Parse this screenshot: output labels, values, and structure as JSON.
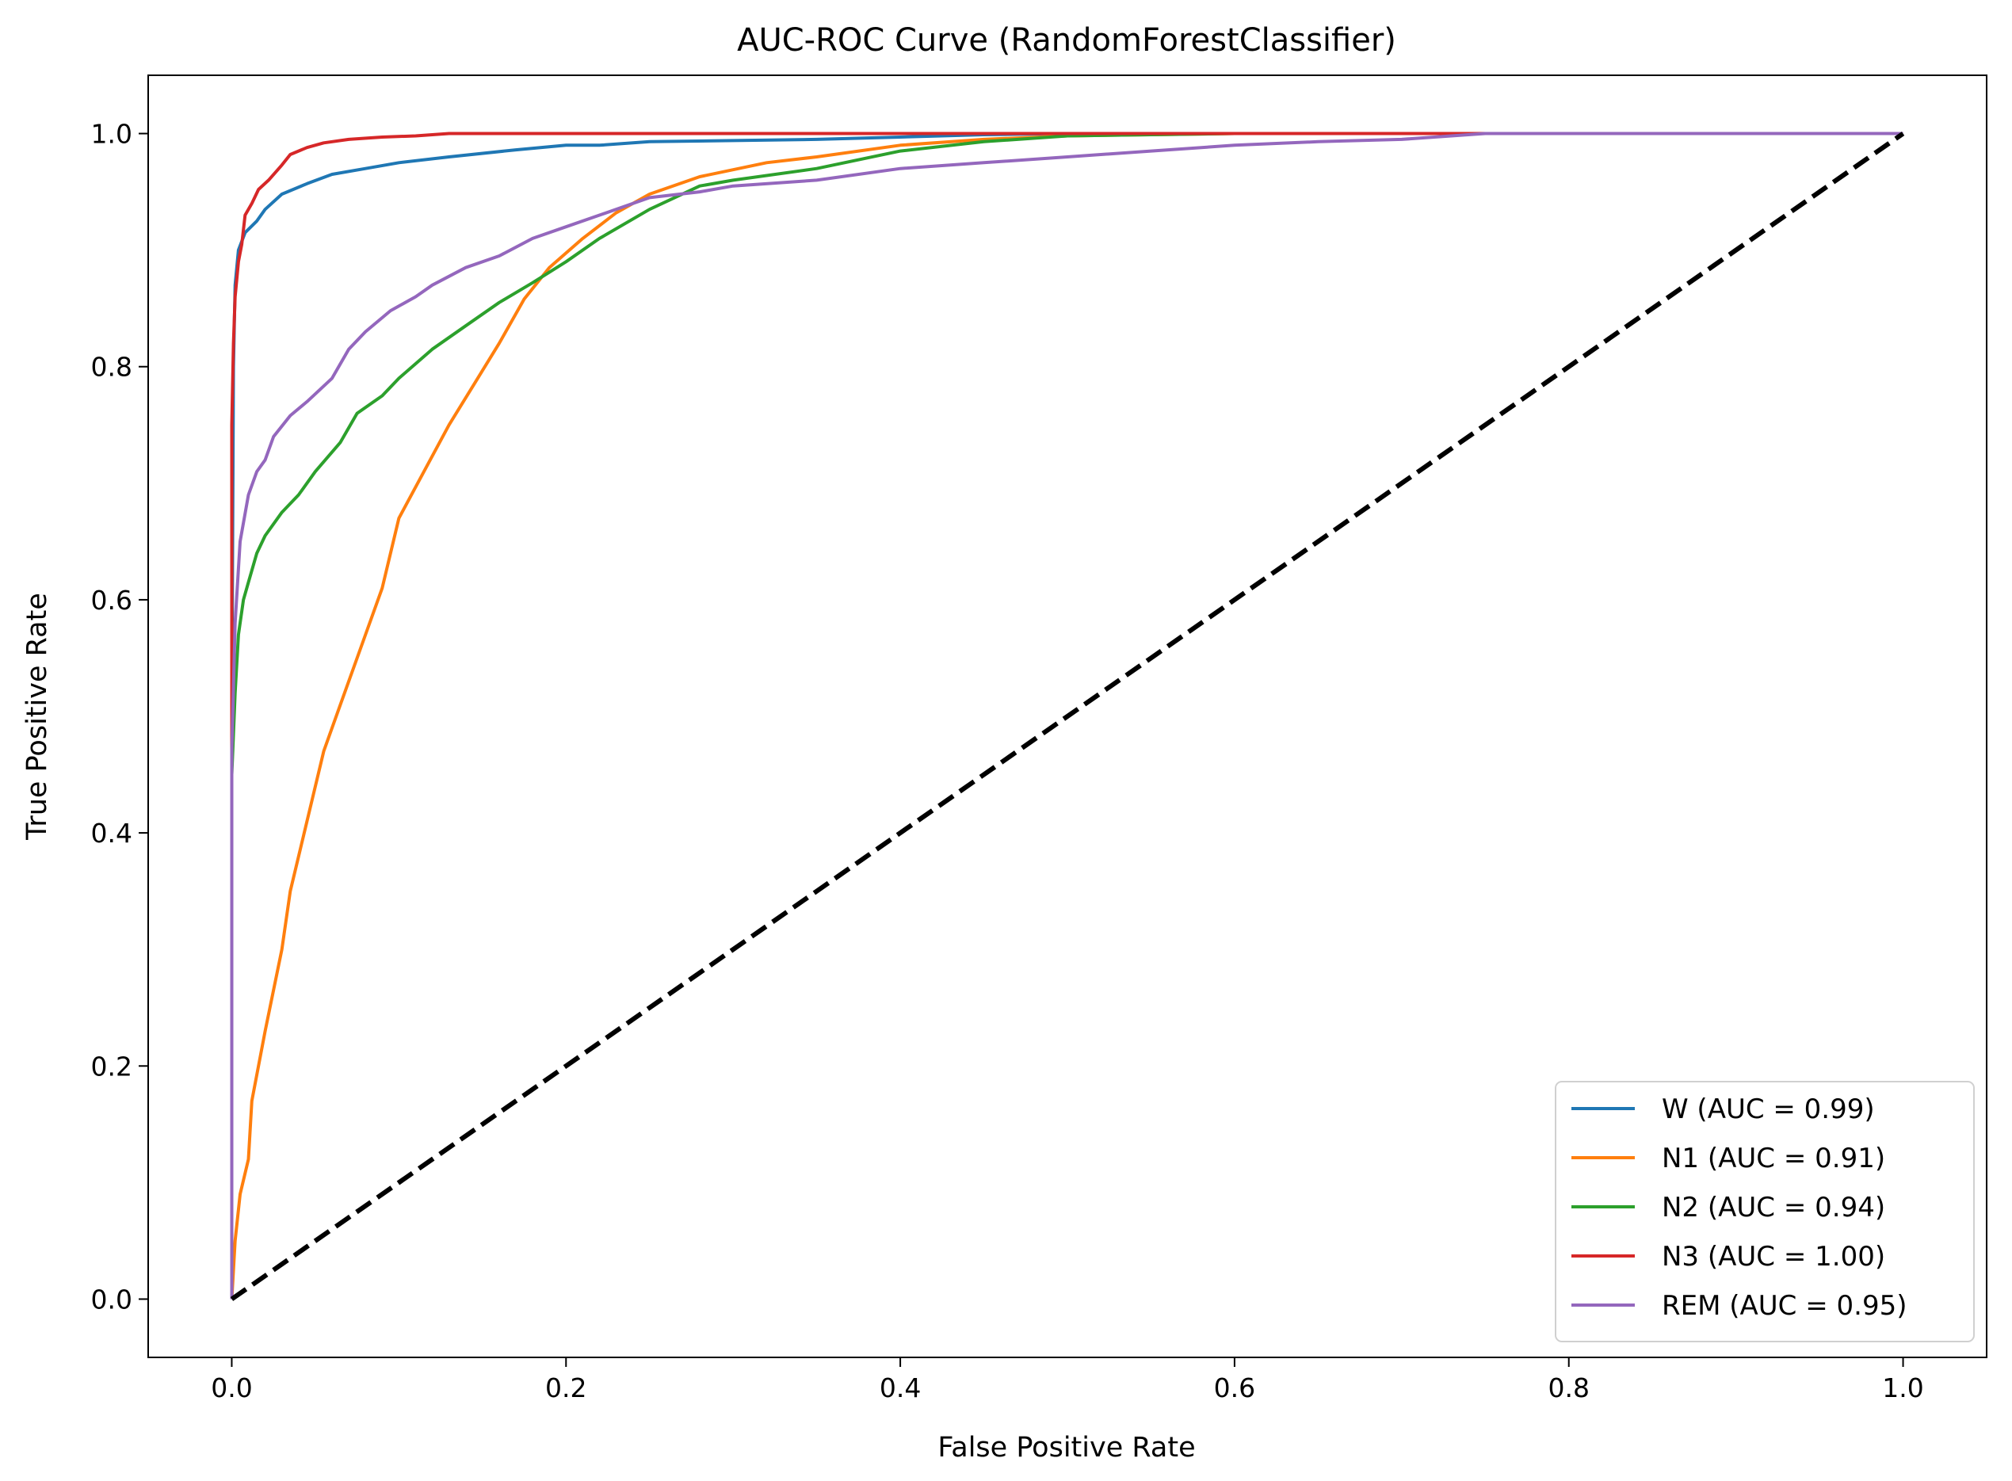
{
  "chart_data": {
    "type": "line",
    "title": "AUC-ROC Curve (RandomForestClassifier)",
    "xlabel": "False Positive Rate",
    "ylabel": "True Positive Rate",
    "xlim": [
      -0.05,
      1.05
    ],
    "ylim": [
      -0.05,
      1.05
    ],
    "xticks": [
      0.0,
      0.2,
      0.4,
      0.6,
      0.8,
      1.0
    ],
    "yticks": [
      0.0,
      0.2,
      0.4,
      0.6,
      0.8,
      1.0
    ],
    "xtick_labels": [
      "0.0",
      "0.2",
      "0.4",
      "0.6",
      "0.8",
      "1.0"
    ],
    "ytick_labels": [
      "0.0",
      "0.2",
      "0.4",
      "0.6",
      "0.8",
      "1.0"
    ],
    "grid": false,
    "legend_position": "lower-right",
    "series": [
      {
        "name": "W (AUC = 0.99)",
        "color": "#1f77b4",
        "points": [
          [
            0,
            0
          ],
          [
            0,
            0.5
          ],
          [
            0.001,
            0.8
          ],
          [
            0.002,
            0.87
          ],
          [
            0.004,
            0.9
          ],
          [
            0.008,
            0.915
          ],
          [
            0.015,
            0.925
          ],
          [
            0.02,
            0.935
          ],
          [
            0.03,
            0.948
          ],
          [
            0.045,
            0.957
          ],
          [
            0.06,
            0.965
          ],
          [
            0.08,
            0.97
          ],
          [
            0.1,
            0.975
          ],
          [
            0.13,
            0.98
          ],
          [
            0.17,
            0.986
          ],
          [
            0.2,
            0.99
          ],
          [
            0.22,
            0.99
          ],
          [
            0.25,
            0.993
          ],
          [
            0.3,
            0.994
          ],
          [
            0.35,
            0.995
          ],
          [
            0.4,
            0.997
          ],
          [
            0.45,
            0.999
          ],
          [
            0.5,
            1.0
          ],
          [
            1.0,
            1.0
          ]
        ]
      },
      {
        "name": "N1 (AUC = 0.91)",
        "color": "#ff7f0e",
        "points": [
          [
            0,
            0
          ],
          [
            0.002,
            0.05
          ],
          [
            0.005,
            0.09
          ],
          [
            0.01,
            0.12
          ],
          [
            0.012,
            0.17
          ],
          [
            0.02,
            0.23
          ],
          [
            0.03,
            0.3
          ],
          [
            0.035,
            0.35
          ],
          [
            0.045,
            0.41
          ],
          [
            0.055,
            0.47
          ],
          [
            0.065,
            0.51
          ],
          [
            0.08,
            0.57
          ],
          [
            0.09,
            0.61
          ],
          [
            0.1,
            0.67
          ],
          [
            0.115,
            0.71
          ],
          [
            0.13,
            0.75
          ],
          [
            0.145,
            0.785
          ],
          [
            0.16,
            0.82
          ],
          [
            0.175,
            0.858
          ],
          [
            0.19,
            0.885
          ],
          [
            0.21,
            0.91
          ],
          [
            0.23,
            0.932
          ],
          [
            0.25,
            0.948
          ],
          [
            0.28,
            0.963
          ],
          [
            0.32,
            0.975
          ],
          [
            0.35,
            0.98
          ],
          [
            0.4,
            0.99
          ],
          [
            0.45,
            0.995
          ],
          [
            0.5,
            0.998
          ],
          [
            0.6,
            1.0
          ],
          [
            1.0,
            1.0
          ]
        ]
      },
      {
        "name": "N2 (AUC = 0.94)",
        "color": "#2ca02c",
        "points": [
          [
            0,
            0
          ],
          [
            0,
            0.45
          ],
          [
            0.002,
            0.52
          ],
          [
            0.004,
            0.57
          ],
          [
            0.007,
            0.6
          ],
          [
            0.01,
            0.615
          ],
          [
            0.015,
            0.64
          ],
          [
            0.02,
            0.655
          ],
          [
            0.03,
            0.675
          ],
          [
            0.04,
            0.69
          ],
          [
            0.05,
            0.71
          ],
          [
            0.065,
            0.735
          ],
          [
            0.075,
            0.76
          ],
          [
            0.09,
            0.775
          ],
          [
            0.1,
            0.79
          ],
          [
            0.12,
            0.815
          ],
          [
            0.14,
            0.835
          ],
          [
            0.16,
            0.855
          ],
          [
            0.18,
            0.872
          ],
          [
            0.2,
            0.89
          ],
          [
            0.22,
            0.91
          ],
          [
            0.25,
            0.935
          ],
          [
            0.28,
            0.955
          ],
          [
            0.3,
            0.96
          ],
          [
            0.35,
            0.97
          ],
          [
            0.4,
            0.985
          ],
          [
            0.45,
            0.993
          ],
          [
            0.5,
            0.998
          ],
          [
            0.6,
            1.0
          ],
          [
            1.0,
            1.0
          ]
        ]
      },
      {
        "name": "N3 (AUC = 1.00)",
        "color": "#d62728",
        "points": [
          [
            0,
            0
          ],
          [
            0,
            0.75
          ],
          [
            0.001,
            0.82
          ],
          [
            0.002,
            0.86
          ],
          [
            0.004,
            0.89
          ],
          [
            0.006,
            0.905
          ],
          [
            0.008,
            0.93
          ],
          [
            0.012,
            0.94
          ],
          [
            0.016,
            0.952
          ],
          [
            0.022,
            0.96
          ],
          [
            0.03,
            0.973
          ],
          [
            0.035,
            0.982
          ],
          [
            0.045,
            0.988
          ],
          [
            0.055,
            0.992
          ],
          [
            0.07,
            0.995
          ],
          [
            0.09,
            0.997
          ],
          [
            0.11,
            0.998
          ],
          [
            0.13,
            1.0
          ],
          [
            1.0,
            1.0
          ]
        ]
      },
      {
        "name": "REM (AUC = 0.95)",
        "color": "#9467bd",
        "points": [
          [
            0,
            0
          ],
          [
            0,
            0.47
          ],
          [
            0.002,
            0.58
          ],
          [
            0.005,
            0.65
          ],
          [
            0.01,
            0.69
          ],
          [
            0.015,
            0.71
          ],
          [
            0.02,
            0.72
          ],
          [
            0.025,
            0.74
          ],
          [
            0.035,
            0.758
          ],
          [
            0.045,
            0.77
          ],
          [
            0.06,
            0.79
          ],
          [
            0.07,
            0.815
          ],
          [
            0.08,
            0.83
          ],
          [
            0.095,
            0.848
          ],
          [
            0.11,
            0.86
          ],
          [
            0.12,
            0.87
          ],
          [
            0.14,
            0.885
          ],
          [
            0.16,
            0.895
          ],
          [
            0.18,
            0.91
          ],
          [
            0.2,
            0.92
          ],
          [
            0.22,
            0.93
          ],
          [
            0.25,
            0.945
          ],
          [
            0.28,
            0.95
          ],
          [
            0.3,
            0.955
          ],
          [
            0.35,
            0.96
          ],
          [
            0.4,
            0.97
          ],
          [
            0.45,
            0.975
          ],
          [
            0.5,
            0.98
          ],
          [
            0.55,
            0.985
          ],
          [
            0.6,
            0.99
          ],
          [
            0.65,
            0.993
          ],
          [
            0.7,
            0.995
          ],
          [
            0.75,
            1.0
          ],
          [
            1.0,
            1.0
          ]
        ]
      }
    ],
    "reference_line": {
      "color": "#000000",
      "style": "dashed",
      "points": [
        [
          0,
          0
        ],
        [
          1,
          1
        ]
      ]
    }
  }
}
